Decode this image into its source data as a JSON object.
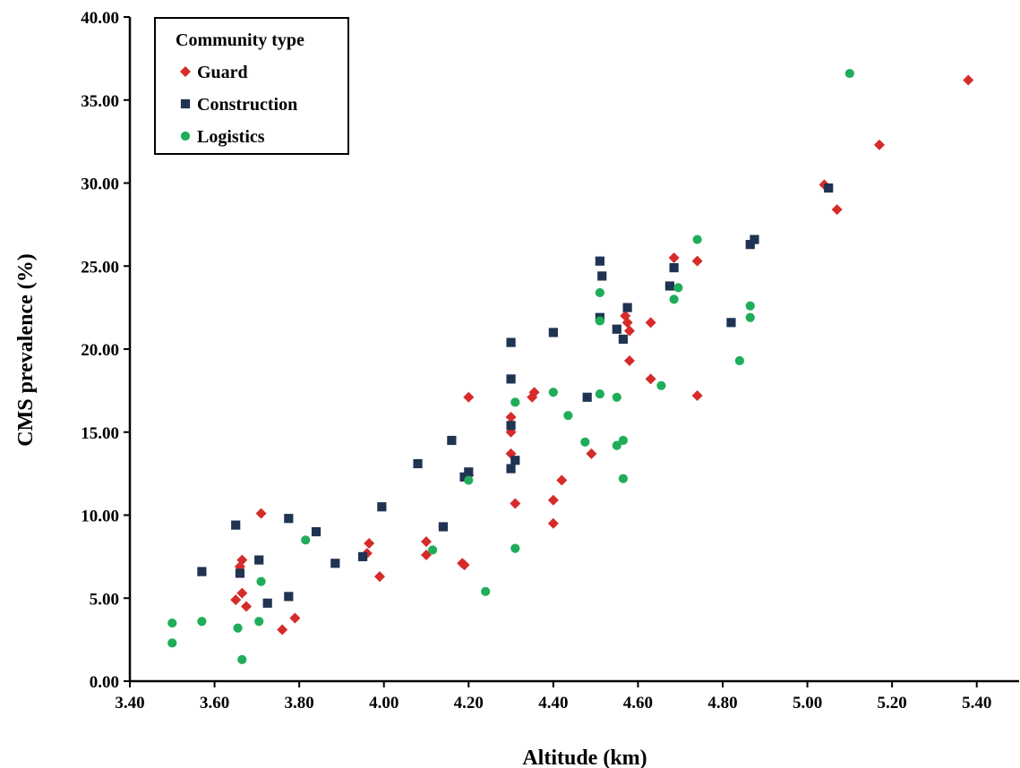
{
  "chart_data": {
    "type": "scatter",
    "xlabel": "Altitude (km)",
    "ylabel": "CMS prevalence  (%)",
    "xlim": [
      3.4,
      5.5
    ],
    "ylim": [
      0,
      40
    ],
    "x_ticks": [
      "3.40",
      "3.60",
      "3.80",
      "4.00",
      "4.20",
      "4.40",
      "4.60",
      "4.80",
      "5.00",
      "5.20",
      "5.40"
    ],
    "y_ticks": [
      "0.00",
      "5.00",
      "10.00",
      "15.00",
      "20.00",
      "25.00",
      "30.00",
      "35.00",
      "40.00"
    ],
    "grid": false,
    "legend": {
      "title": "Community type",
      "position": "top-left"
    },
    "series": [
      {
        "name": "Guard",
        "marker": "diamond",
        "color": "#d62b2b",
        "points": [
          [
            3.65,
            4.9
          ],
          [
            3.66,
            6.9
          ],
          [
            3.665,
            7.3
          ],
          [
            3.665,
            5.3
          ],
          [
            3.675,
            4.5
          ],
          [
            3.71,
            10.1
          ],
          [
            3.76,
            3.1
          ],
          [
            3.79,
            3.8
          ],
          [
            3.96,
            7.7
          ],
          [
            3.965,
            8.3
          ],
          [
            3.99,
            6.3
          ],
          [
            4.1,
            8.4
          ],
          [
            4.1,
            7.6
          ],
          [
            4.185,
            7.1
          ],
          [
            4.19,
            7.0
          ],
          [
            4.2,
            17.1
          ],
          [
            4.2,
            12.4
          ],
          [
            4.3,
            15.9
          ],
          [
            4.3,
            15.0
          ],
          [
            4.3,
            13.7
          ],
          [
            4.31,
            10.7
          ],
          [
            4.35,
            17.1
          ],
          [
            4.355,
            17.4
          ],
          [
            4.4,
            10.9
          ],
          [
            4.4,
            9.5
          ],
          [
            4.42,
            12.1
          ],
          [
            4.49,
            13.7
          ],
          [
            4.57,
            22.0
          ],
          [
            4.575,
            21.6
          ],
          [
            4.58,
            21.1
          ],
          [
            4.58,
            19.3
          ],
          [
            4.63,
            21.6
          ],
          [
            4.63,
            18.2
          ],
          [
            4.685,
            25.5
          ],
          [
            4.74,
            25.3
          ],
          [
            4.74,
            17.2
          ],
          [
            5.04,
            29.9
          ],
          [
            5.07,
            28.4
          ],
          [
            5.17,
            32.3
          ],
          [
            5.38,
            36.2
          ]
        ]
      },
      {
        "name": "Construction",
        "marker": "square",
        "color": "#1f3352",
        "points": [
          [
            3.57,
            6.6
          ],
          [
            3.65,
            9.4
          ],
          [
            3.66,
            6.5
          ],
          [
            3.705,
            7.3
          ],
          [
            3.725,
            4.7
          ],
          [
            3.775,
            9.8
          ],
          [
            3.775,
            5.1
          ],
          [
            3.84,
            9.0
          ],
          [
            3.885,
            7.1
          ],
          [
            3.95,
            7.5
          ],
          [
            3.995,
            10.5
          ],
          [
            4.08,
            13.1
          ],
          [
            4.14,
            9.3
          ],
          [
            4.16,
            14.5
          ],
          [
            4.19,
            12.3
          ],
          [
            4.2,
            12.6
          ],
          [
            4.3,
            20.4
          ],
          [
            4.3,
            18.2
          ],
          [
            4.3,
            15.4
          ],
          [
            4.3,
            12.8
          ],
          [
            4.31,
            13.3
          ],
          [
            4.4,
            21.0
          ],
          [
            4.48,
            17.1
          ],
          [
            4.51,
            25.3
          ],
          [
            4.51,
            21.9
          ],
          [
            4.515,
            24.4
          ],
          [
            4.55,
            21.2
          ],
          [
            4.565,
            20.6
          ],
          [
            4.575,
            22.5
          ],
          [
            4.675,
            23.8
          ],
          [
            4.685,
            24.9
          ],
          [
            4.82,
            21.6
          ],
          [
            4.865,
            26.3
          ],
          [
            4.875,
            26.6
          ],
          [
            5.05,
            29.7
          ]
        ]
      },
      {
        "name": "Logistics",
        "marker": "circle",
        "color": "#1fad5a",
        "points": [
          [
            3.5,
            3.5
          ],
          [
            3.5,
            2.3
          ],
          [
            3.57,
            3.6
          ],
          [
            3.655,
            3.2
          ],
          [
            3.665,
            1.3
          ],
          [
            3.705,
            3.6
          ],
          [
            3.71,
            6.0
          ],
          [
            3.815,
            8.5
          ],
          [
            4.115,
            7.9
          ],
          [
            4.2,
            12.1
          ],
          [
            4.24,
            5.4
          ],
          [
            4.31,
            16.8
          ],
          [
            4.31,
            8.0
          ],
          [
            4.4,
            17.4
          ],
          [
            4.435,
            16.0
          ],
          [
            4.475,
            14.4
          ],
          [
            4.51,
            23.4
          ],
          [
            4.51,
            21.7
          ],
          [
            4.51,
            17.3
          ],
          [
            4.55,
            17.1
          ],
          [
            4.55,
            14.2
          ],
          [
            4.565,
            14.5
          ],
          [
            4.565,
            12.2
          ],
          [
            4.655,
            17.8
          ],
          [
            4.685,
            23.0
          ],
          [
            4.695,
            23.7
          ],
          [
            4.74,
            26.6
          ],
          [
            4.84,
            19.3
          ],
          [
            4.865,
            22.6
          ],
          [
            4.865,
            21.9
          ],
          [
            5.1,
            36.6
          ]
        ]
      }
    ]
  }
}
